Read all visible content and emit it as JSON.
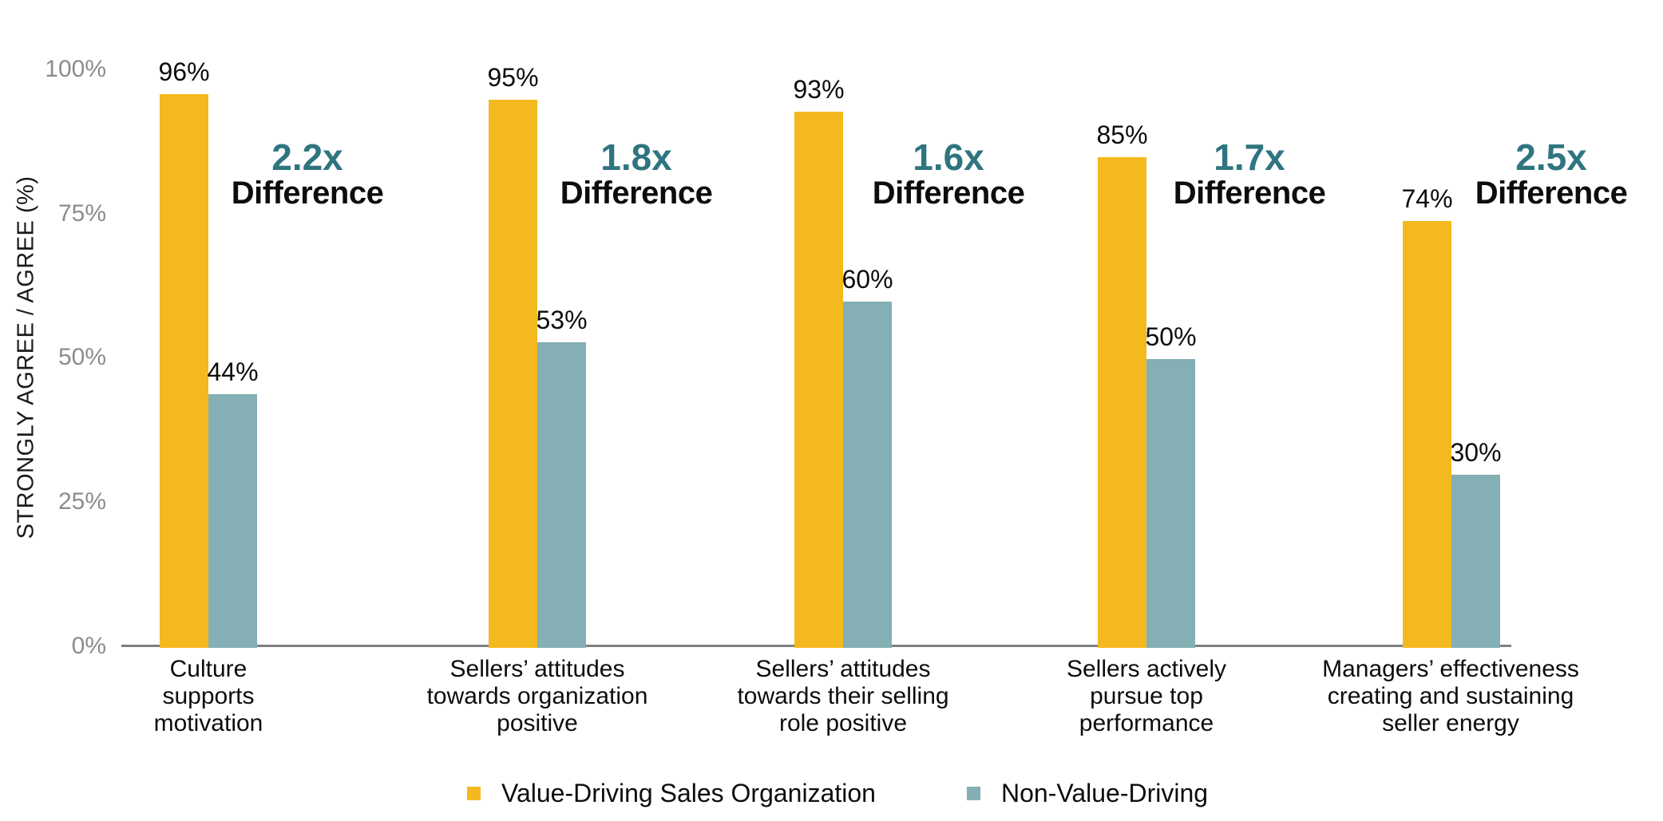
{
  "chart_data": {
    "type": "bar",
    "title": "",
    "xlabel": "",
    "ylabel": "STRONGLY AGREE / AGREE (%)",
    "ylim": [
      0,
      100
    ],
    "grid": false,
    "legend_position": "bottom",
    "yticks": [
      {
        "label": "100%",
        "value": 100
      },
      {
        "label": "75%",
        "value": 75
      },
      {
        "label": "50%",
        "value": 50
      },
      {
        "label": "25%",
        "value": 25
      },
      {
        "label": "0%",
        "value": 0
      }
    ],
    "categories": [
      "Culture\nsupports\nmotivation",
      "Sellers’ attitudes\ntowards organization\npositive",
      "Sellers’ attitudes\ntowards their selling\nrole positive",
      "Sellers actively\npursue top\nperformance",
      "Managers’ effectiveness\ncreating and sustaining\nseller energy"
    ],
    "series": [
      {
        "name": "Value-Driving Sales Organization",
        "color": "#F4B91E",
        "values": [
          96,
          95,
          93,
          85,
          74
        ],
        "value_labels": [
          "96%",
          "95%",
          "93%",
          "85%",
          "74%"
        ]
      },
      {
        "name": "Non-Value-Driving",
        "color": "#84AFB4",
        "values": [
          44,
          53,
          60,
          50,
          30
        ],
        "value_labels": [
          "44%",
          "53%",
          "60%",
          "50%",
          "30%"
        ]
      }
    ],
    "differences": [
      {
        "multiplier": "2.2x",
        "label": "Difference"
      },
      {
        "multiplier": "1.8x",
        "label": "Difference"
      },
      {
        "multiplier": "1.6x",
        "label": "Difference"
      },
      {
        "multiplier": "1.7x",
        "label": "Difference"
      },
      {
        "multiplier": "2.5x",
        "label": "Difference"
      }
    ],
    "colors": {
      "multiplier_text": "#2F7580",
      "difference_text": "#0d0d0d",
      "axis_line": "#7F7F7F",
      "tick_text": "#8C8C8C"
    }
  }
}
